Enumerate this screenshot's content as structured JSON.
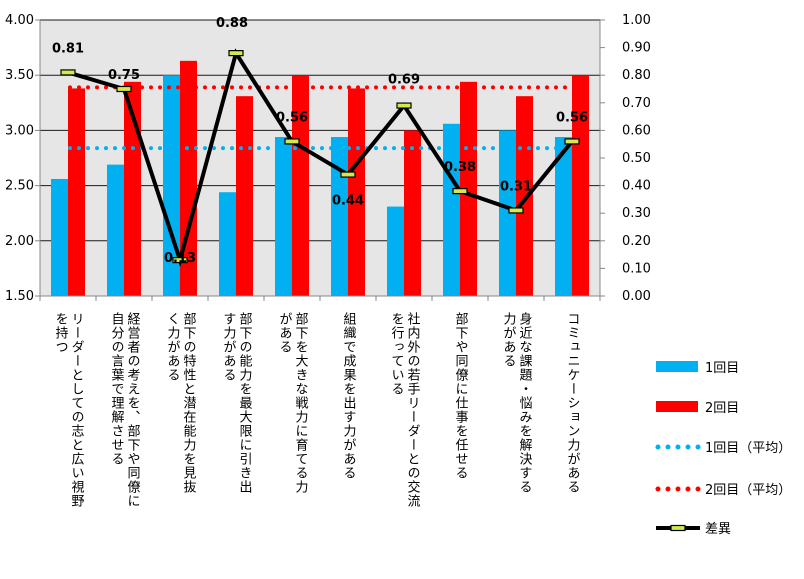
{
  "chart_data": {
    "type": "bar",
    "categories": [
      [
        "リーダーとしての志と広い視野",
        "を持つ"
      ],
      [
        "経営者の考えを、部下や同僚に",
        "自分の言葉で理解させる"
      ],
      [
        "部下の特性と潜在能力を見抜",
        "く力がある"
      ],
      [
        "部下の能力を最大限に引き出",
        "す力がある"
      ],
      [
        "部下を大きな戦力に育てる力",
        "がある"
      ],
      [
        "組織で成果を出す力がある"
      ],
      [
        "社内外の若手リーダーとの交流",
        "を行っている"
      ],
      [
        "部下や同僚に仕事を任せる"
      ],
      [
        "身近な課題・悩みを解決する",
        "力がある"
      ],
      [
        "コミュニケーション力がある"
      ]
    ],
    "series": [
      {
        "name": "1回目",
        "axis": "left",
        "color": "#00b0f0",
        "values": [
          2.56,
          2.69,
          3.5,
          2.44,
          2.94,
          2.94,
          2.31,
          3.06,
          3.0,
          2.94
        ]
      },
      {
        "name": "2回目",
        "axis": "left",
        "color": "#ff0000",
        "values": [
          3.38,
          3.44,
          3.63,
          3.31,
          3.5,
          3.38,
          3.0,
          3.44,
          3.31,
          3.5
        ]
      },
      {
        "name": "1回目（平均）",
        "axis": "left",
        "color": "#00b0f0",
        "style": "dotted",
        "value": 2.84
      },
      {
        "name": "2回目（平均）",
        "axis": "left",
        "color": "#ff0000",
        "style": "dotted",
        "value": 3.39
      },
      {
        "name": "差異",
        "axis": "right",
        "color": "#000000",
        "values": [
          0.81,
          0.75,
          0.13,
          0.88,
          0.56,
          0.44,
          0.69,
          0.38,
          0.31,
          0.56
        ]
      }
    ],
    "data_labels": [
      "0.81",
      "0.75",
      "0.13",
      "0.88",
      "0.56",
      "0.44",
      "0.69",
      "0.38",
      "0.31",
      "0.56"
    ],
    "y_left": {
      "ylim": [
        1.5,
        4.0
      ],
      "ticks": [
        "1.50",
        "2.00",
        "2.50",
        "3.00",
        "3.50",
        "4.00"
      ]
    },
    "y_right": {
      "ylim": [
        0.0,
        1.0
      ],
      "ticks": [
        "0.00",
        "0.10",
        "0.20",
        "0.30",
        "0.40",
        "0.50",
        "0.60",
        "0.70",
        "0.80",
        "0.90",
        "1.00"
      ]
    },
    "grid": true,
    "plot_background": "#e6e6e6",
    "legend_position": "right"
  }
}
